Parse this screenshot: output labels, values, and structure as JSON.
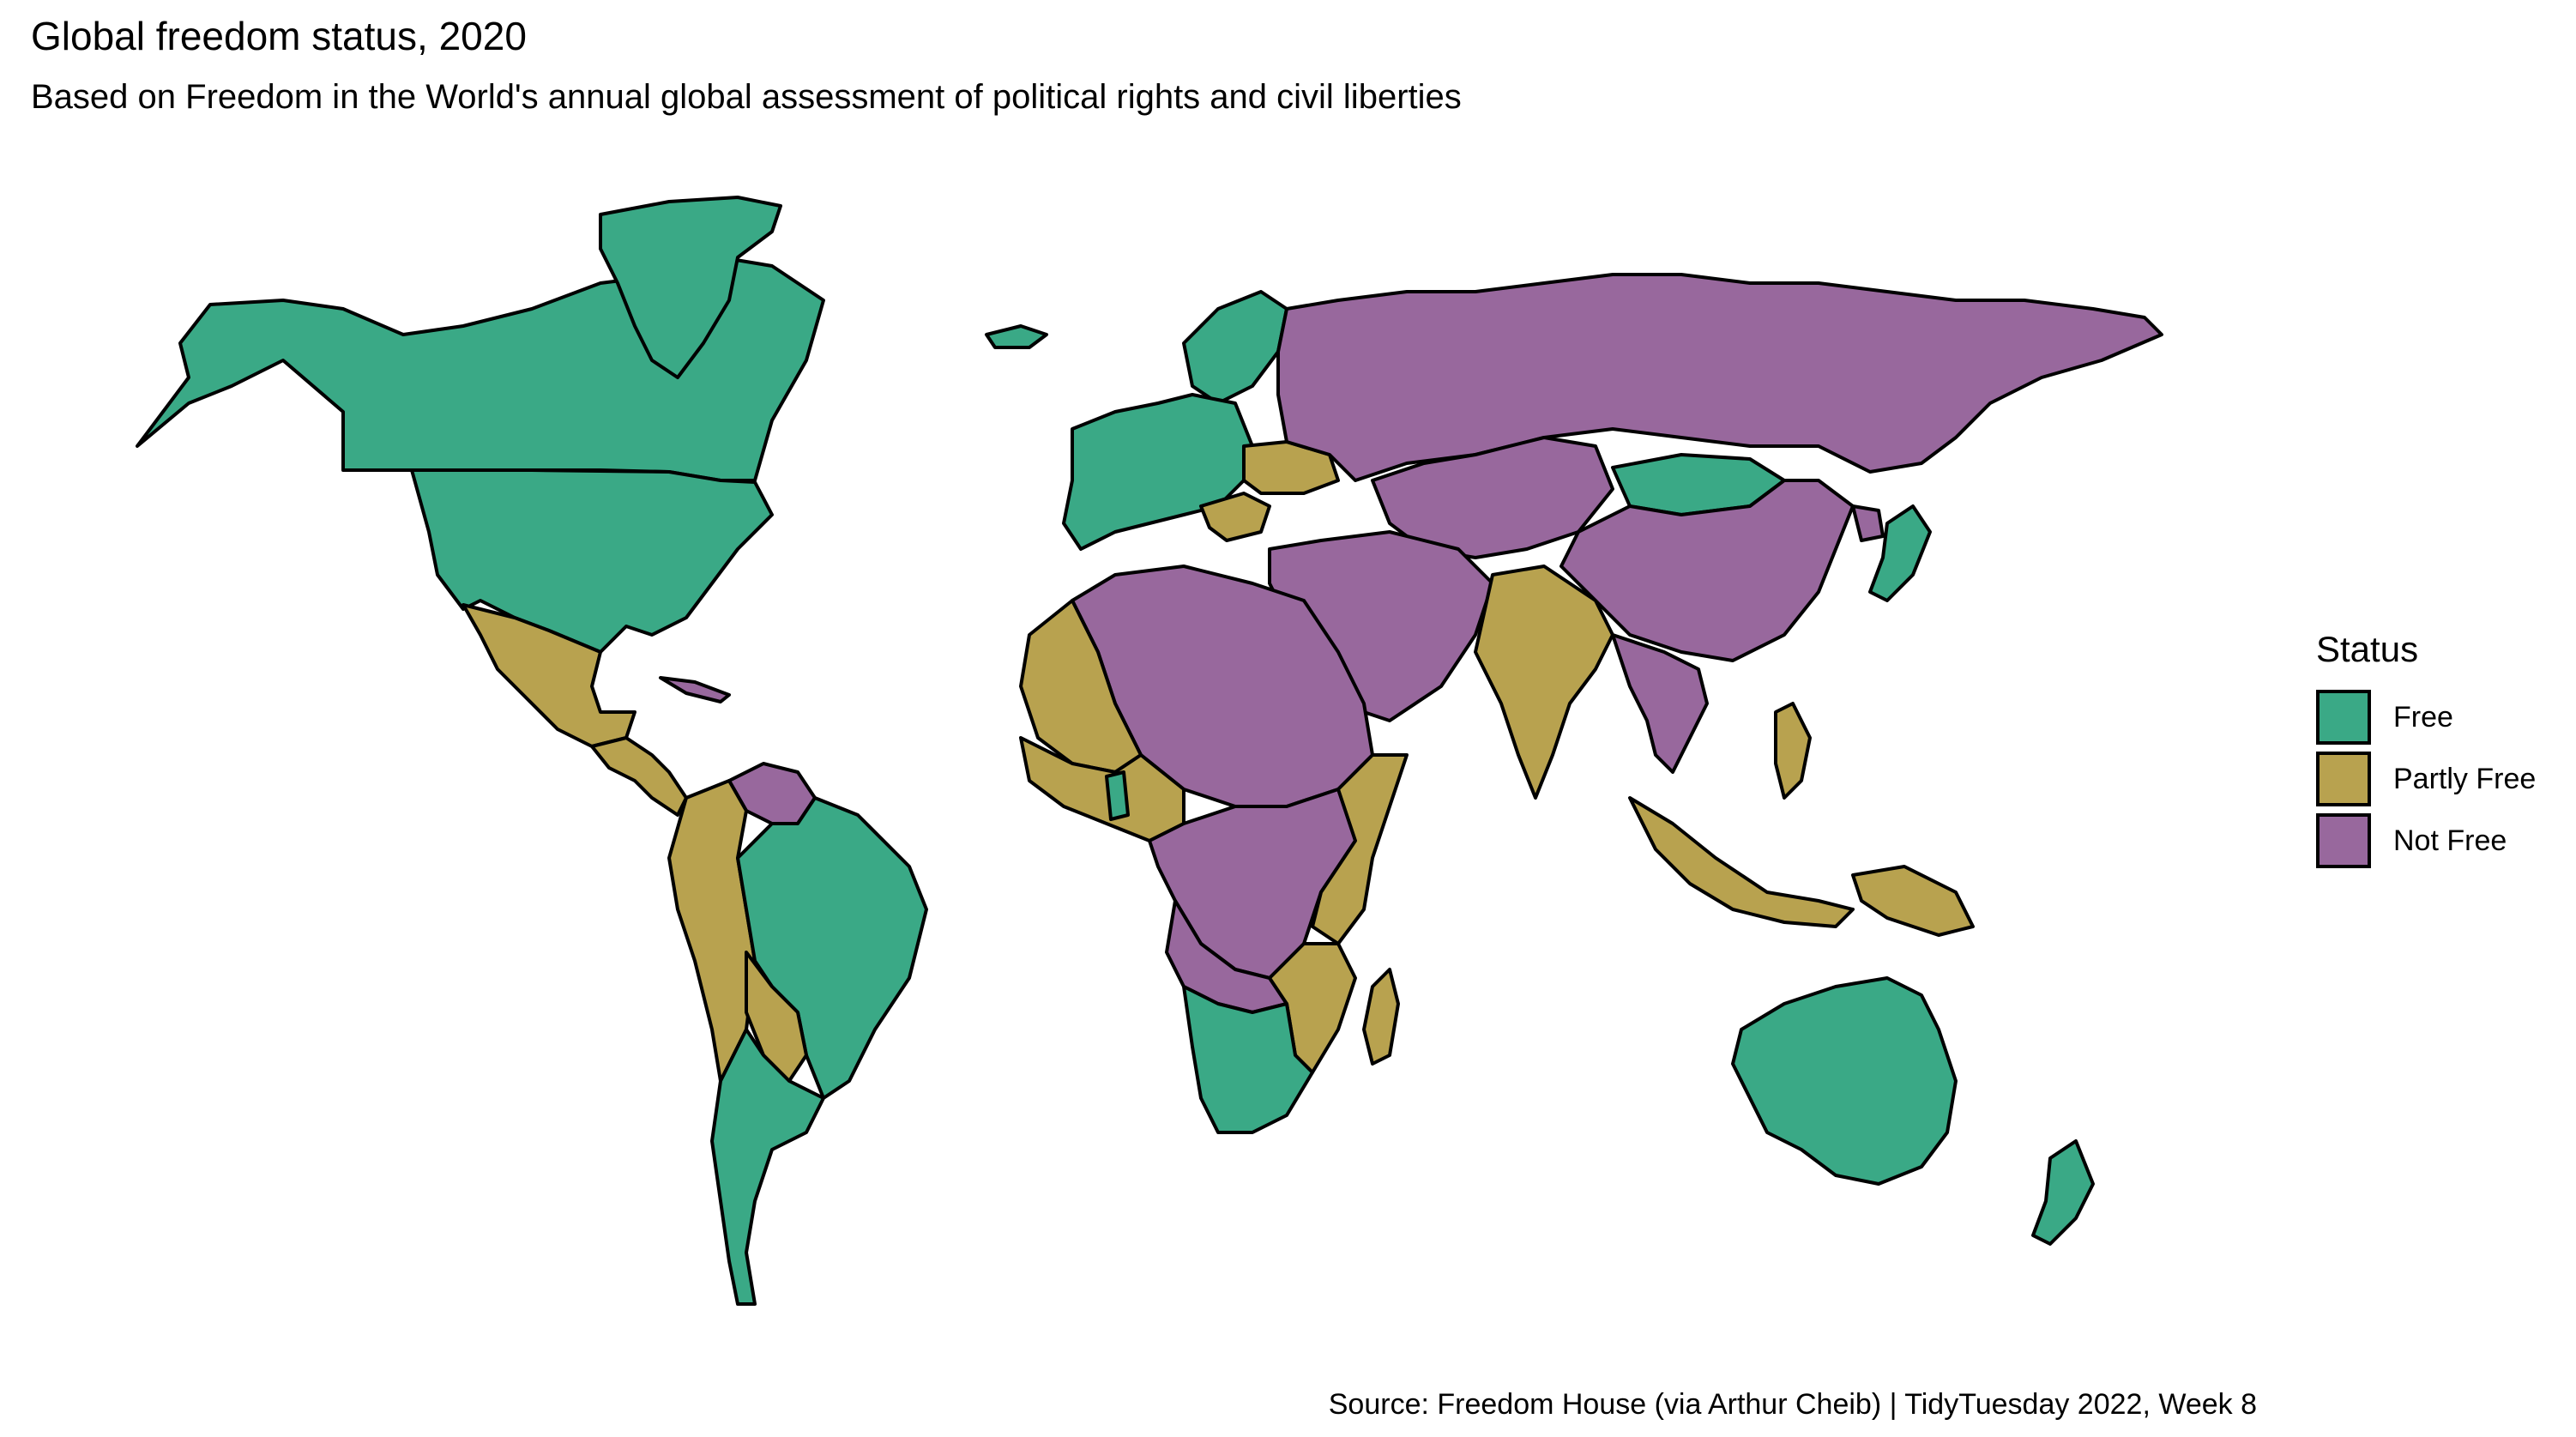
{
  "title": "Global freedom status, 2020",
  "subtitle": "Based on Freedom in the World's annual global assessment of political rights and civil liberties",
  "caption": "Source: Freedom House (via Arthur Cheib) | TidyTuesday 2022, Week 8",
  "legend": {
    "title": "Status",
    "items": [
      {
        "label": "Free",
        "color": "#3aa986"
      },
      {
        "label": "Partly Free",
        "color": "#b8a24f"
      },
      {
        "label": "Not Free",
        "color": "#98689d"
      }
    ]
  },
  "map": {
    "type": "choropleth",
    "year": "2020",
    "background": "#ffffff",
    "regions": [
      {
        "region": "north-america-north",
        "status": "Free"
      },
      {
        "region": "greenland",
        "status": "Free"
      },
      {
        "region": "usa",
        "status": "Free"
      },
      {
        "region": "mexico",
        "status": "Partly Free"
      },
      {
        "region": "central-america",
        "status": "Partly Free"
      },
      {
        "region": "cuba",
        "status": "Not Free"
      },
      {
        "region": "venezuela",
        "status": "Not Free"
      },
      {
        "region": "andes",
        "status": "Partly Free"
      },
      {
        "region": "brazil",
        "status": "Free"
      },
      {
        "region": "paraguay",
        "status": "Partly Free"
      },
      {
        "region": "southern-cone",
        "status": "Free"
      },
      {
        "region": "western-europe",
        "status": "Free"
      },
      {
        "region": "scandinavia",
        "status": "Free"
      },
      {
        "region": "iceland",
        "status": "Free"
      },
      {
        "region": "ukraine",
        "status": "Partly Free"
      },
      {
        "region": "balkans",
        "status": "Partly Free"
      },
      {
        "region": "russia",
        "status": "Not Free"
      },
      {
        "region": "central-asia",
        "status": "Not Free"
      },
      {
        "region": "mongolia",
        "status": "Free"
      },
      {
        "region": "china",
        "status": "Not Free"
      },
      {
        "region": "korea-north",
        "status": "Not Free"
      },
      {
        "region": "japan",
        "status": "Free"
      },
      {
        "region": "middle-east",
        "status": "Not Free"
      },
      {
        "region": "india",
        "status": "Partly Free"
      },
      {
        "region": "southeast-asia",
        "status": "Not Free"
      },
      {
        "region": "indonesia-malaysia",
        "status": "Partly Free"
      },
      {
        "region": "philippines",
        "status": "Partly Free"
      },
      {
        "region": "papua-new-guinea",
        "status": "Partly Free"
      },
      {
        "region": "australia",
        "status": "Free"
      },
      {
        "region": "new-zealand",
        "status": "Free"
      },
      {
        "region": "north-africa",
        "status": "Not Free"
      },
      {
        "region": "northwest-africa",
        "status": "Partly Free"
      },
      {
        "region": "west-africa",
        "status": "Partly Free"
      },
      {
        "region": "ghana",
        "status": "Free"
      },
      {
        "region": "central-africa",
        "status": "Not Free"
      },
      {
        "region": "east-africa",
        "status": "Partly Free"
      },
      {
        "region": "southern-africa-central",
        "status": "Not Free"
      },
      {
        "region": "mozambique-zambia",
        "status": "Partly Free"
      },
      {
        "region": "southern-africa",
        "status": "Free"
      },
      {
        "region": "madagascar",
        "status": "Partly Free"
      }
    ]
  }
}
